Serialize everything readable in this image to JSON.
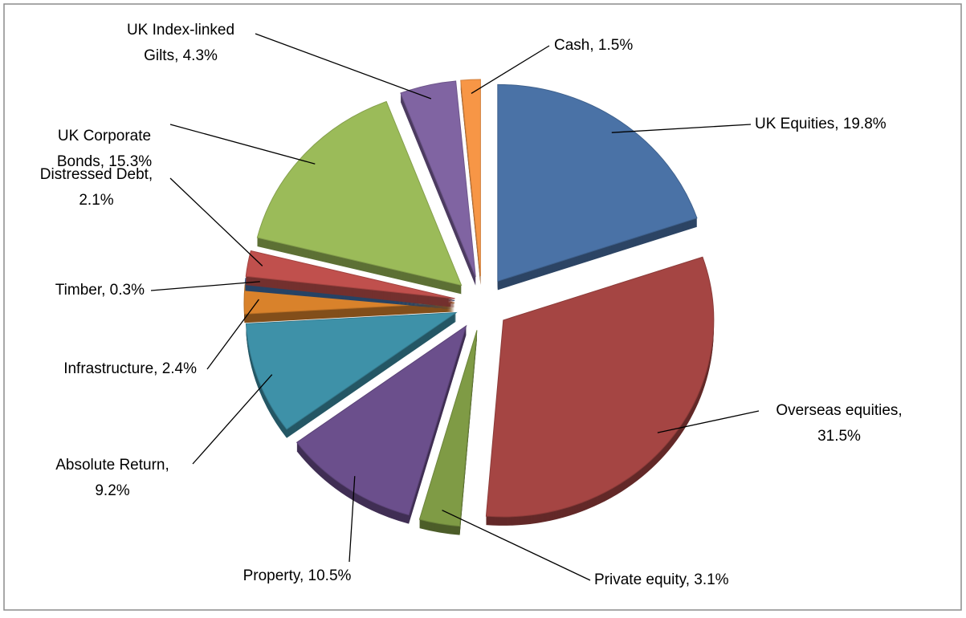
{
  "chart_data": {
    "type": "pie",
    "values": [
      19.8,
      31.5,
      3.1,
      10.5,
      9.2,
      2.4,
      0.3,
      2.1,
      15.3,
      4.3,
      1.5
    ],
    "value_labels": [
      "UK Equities, 19.8%",
      "Overseas equities,\n31.5%",
      "Private equity, 3.1%",
      "Property, 10.5%",
      "Absolute Return,\n9.2%",
      "Infrastructure, 2.4%",
      "Timber, 0.3%",
      "Distressed Debt,\n2.1%",
      "UK Corporate\nBonds, 15.3%",
      "UK Index-linked\nGilts, 4.3%",
      "Cash, 1.5%"
    ],
    "colors": [
      "#4a72a6",
      "#a54543",
      "#7f9b45",
      "#6b4f8c",
      "#3e91a8",
      "#d9822b",
      "#3f6fa8",
      "#c0504d",
      "#9bbb59",
      "#8064a2",
      "#f79646"
    ]
  }
}
